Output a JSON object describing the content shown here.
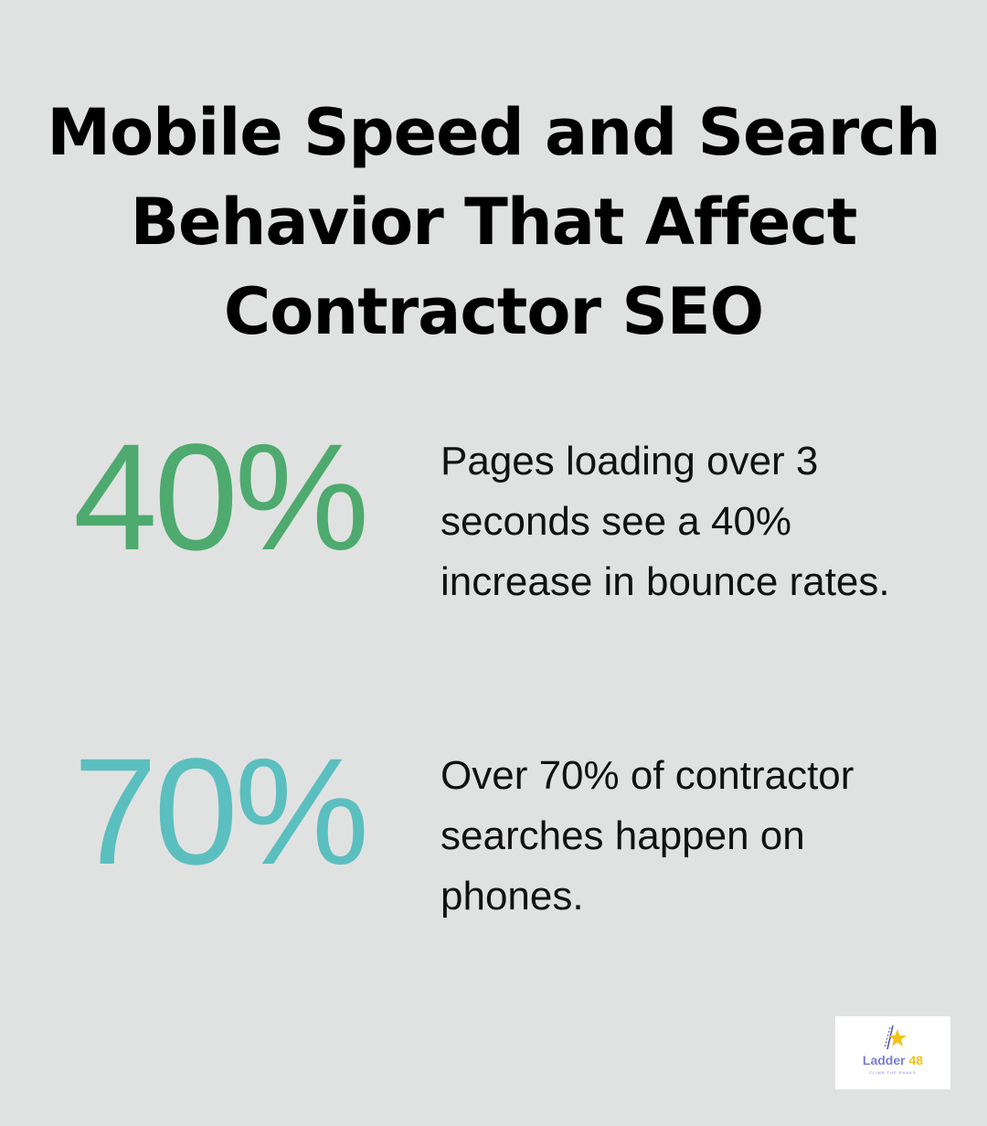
{
  "title": [
    "Mobile Speed and Search",
    "Behavior That Affect",
    "Contractor SEO"
  ],
  "stats": [
    {
      "value": "40%",
      "description": "Pages loading over 3 seconds see a 40% increase in bounce rates.",
      "color": "#4eaa6e"
    },
    {
      "value": "70%",
      "description": "Over 70% of contractor searches happen on phones.",
      "color": "#5bbfbf"
    }
  ],
  "logo": {
    "name": "Ladder",
    "number": "48",
    "tagline": "CLIMB THE RANKS"
  },
  "colors": {
    "background": "#e0e2e1",
    "logo_blue": "#7b7fd0",
    "logo_yellow": "#f2c21b"
  }
}
